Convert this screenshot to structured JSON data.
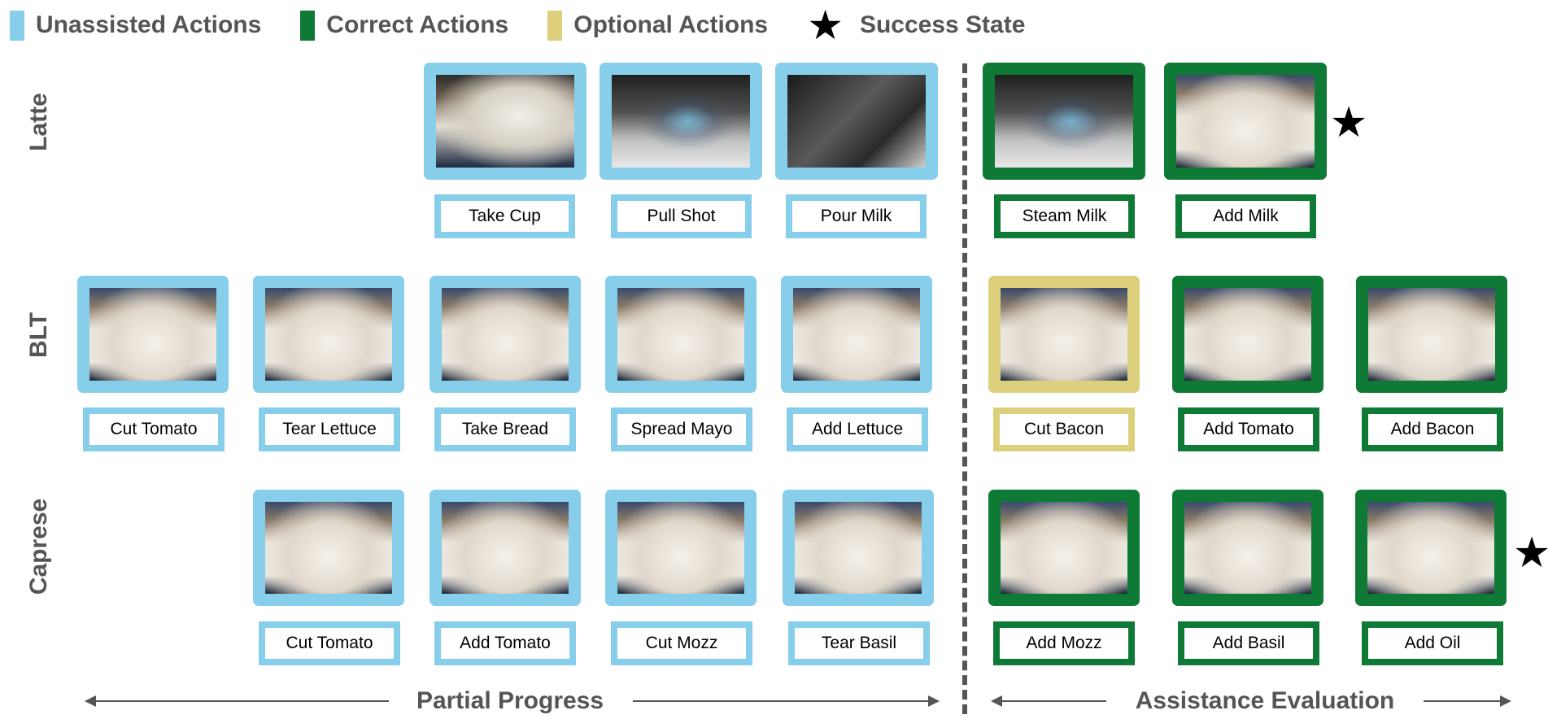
{
  "legend": {
    "unassisted": {
      "label": "Unassisted Actions",
      "color": "#87ceeb"
    },
    "correct": {
      "label": "Correct Actions",
      "color": "#0f7a35"
    },
    "optional": {
      "label": "Optional Actions",
      "color": "#dcd07c"
    },
    "success": {
      "label": "Success State",
      "icon": "star-icon"
    }
  },
  "rows": {
    "latte": {
      "label": "Latte"
    },
    "blt": {
      "label": "BLT"
    },
    "caprese": {
      "label": "Caprese"
    }
  },
  "latte": [
    {
      "caption": "Take Cup",
      "kind": "unassisted"
    },
    {
      "caption": "Pull Shot",
      "kind": "unassisted"
    },
    {
      "caption": "Pour Milk",
      "kind": "unassisted"
    },
    {
      "caption": "Steam Milk",
      "kind": "correct"
    },
    {
      "caption": "Add Milk",
      "kind": "correct",
      "success": true
    }
  ],
  "blt": [
    {
      "caption": "Cut Tomato",
      "kind": "unassisted"
    },
    {
      "caption": "Tear Lettuce",
      "kind": "unassisted"
    },
    {
      "caption": "Take Bread",
      "kind": "unassisted"
    },
    {
      "caption": "Spread Mayo",
      "kind": "unassisted"
    },
    {
      "caption": "Add Lettuce",
      "kind": "unassisted"
    },
    {
      "caption": "Cut Bacon",
      "kind": "optional"
    },
    {
      "caption": "Add Tomato",
      "kind": "correct"
    },
    {
      "caption": "Add Bacon",
      "kind": "correct"
    }
  ],
  "caprese": [
    {
      "caption": "Cut Tomato",
      "kind": "unassisted"
    },
    {
      "caption": "Add Tomato",
      "kind": "unassisted"
    },
    {
      "caption": "Cut Mozz",
      "kind": "unassisted"
    },
    {
      "caption": "Tear Basil",
      "kind": "unassisted"
    },
    {
      "caption": "Add Mozz",
      "kind": "correct"
    },
    {
      "caption": "Add Basil",
      "kind": "correct"
    },
    {
      "caption": "Add Oil",
      "kind": "correct",
      "success": true
    }
  ],
  "sections": {
    "left": "Partial Progress",
    "right": "Assistance Evaluation"
  }
}
